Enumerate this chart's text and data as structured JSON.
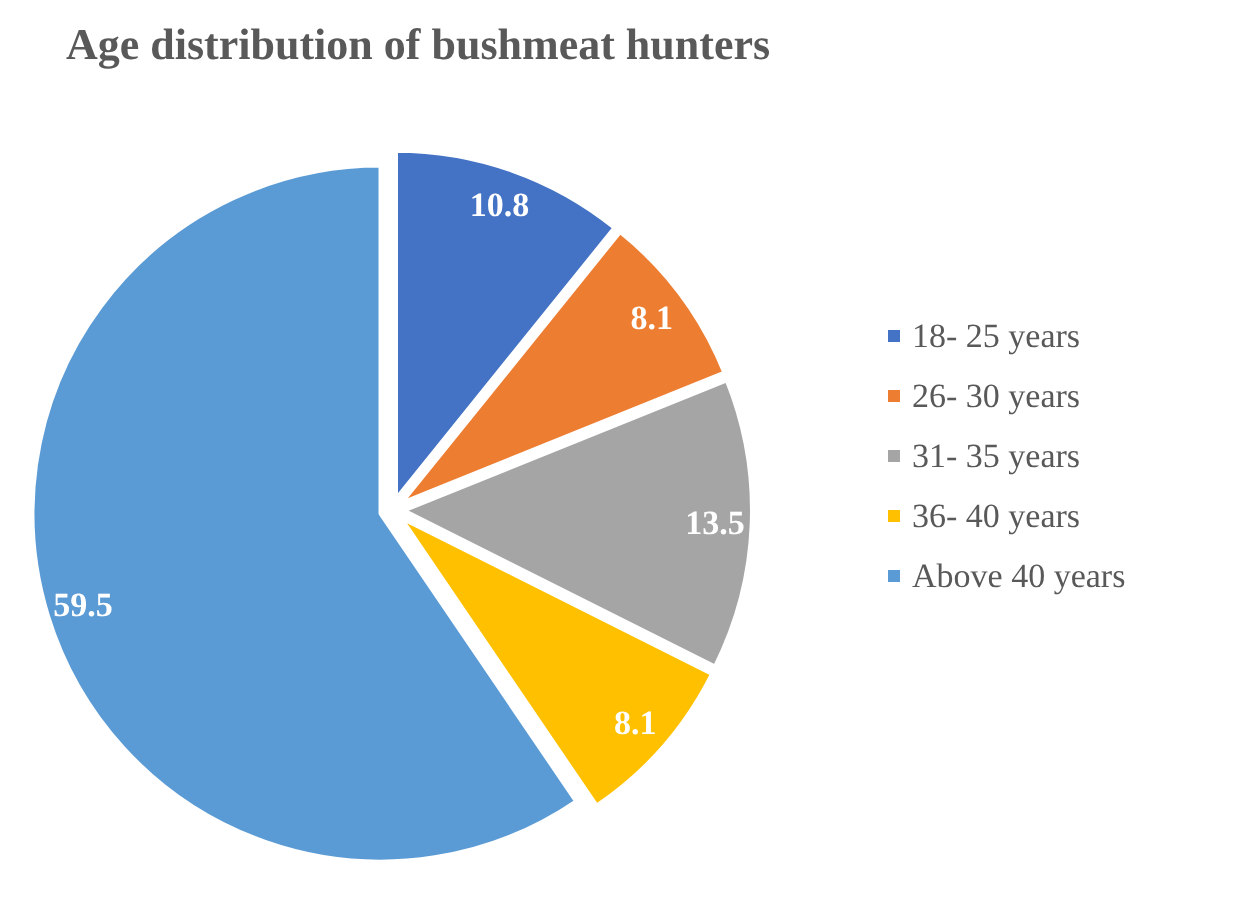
{
  "chart_data": {
    "type": "pie",
    "title": "Age distribution of bushmeat hunters",
    "categories": [
      "18- 25 years",
      "26- 30 years",
      "31- 35 years",
      "36- 40 years",
      "Above 40 years"
    ],
    "values": [
      10.8,
      8.1,
      13.5,
      8.1,
      59.5
    ],
    "colors": [
      "#4472c4",
      "#ed7d31",
      "#a5a5a5",
      "#ffc000",
      "#5b9bd5"
    ],
    "data_labels": true,
    "legend": "right"
  }
}
